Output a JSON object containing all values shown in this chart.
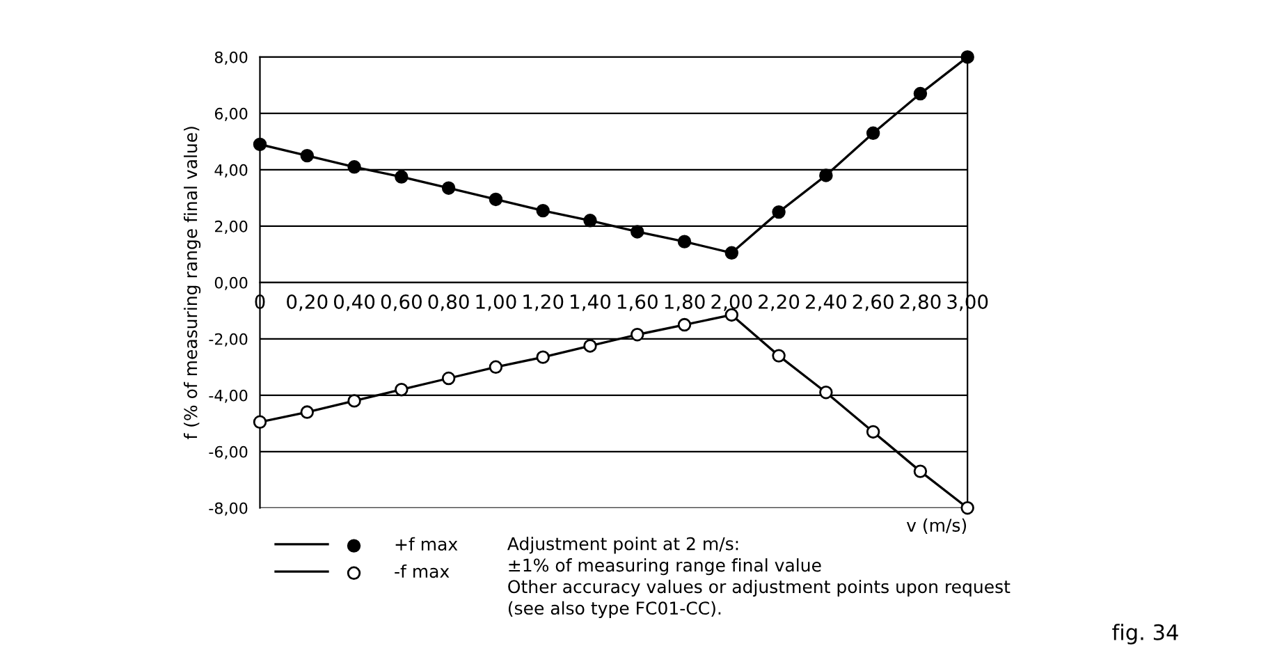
{
  "chart_data": {
    "type": "line",
    "xlabel": "v (m/s)",
    "ylabel": "f (% of measuring range final value)",
    "x": [
      0,
      0.2,
      0.4,
      0.6,
      0.8,
      1.0,
      1.2,
      1.4,
      1.6,
      1.8,
      2.0,
      2.2,
      2.4,
      2.6,
      2.8,
      3.0
    ],
    "series": [
      {
        "name": "+f max",
        "color": "#000000",
        "colors": [
          "#000000",
          "#000000",
          "#000000",
          "#000000",
          "#000000",
          "#000000",
          "#000000",
          "#000000",
          "#000000",
          "#000000",
          "#000000",
          "#000000",
          "#000000",
          "#000000",
          "#000000",
          "#000000"
        ],
        "values": [
          4.9,
          4.5,
          4.1,
          3.75,
          3.35,
          2.95,
          2.55,
          2.2,
          1.8,
          1.45,
          1.05,
          2.5,
          3.8,
          5.3,
          6.7,
          8.0
        ]
      },
      {
        "name": "-f max",
        "color": "#000000",
        "colors": [
          "#ffffff",
          "#ffffff",
          "#ffffff",
          "#ffffff",
          "#ffffff",
          "#ffffff",
          "#ffffff",
          "#ffffff",
          "#ffffff",
          "#ffffff",
          "#ffffff",
          "#ffffff",
          "#ffffff",
          "#ffffff",
          "#ffffff",
          "#ffffff"
        ],
        "values": [
          -4.95,
          -4.6,
          -4.2,
          -3.8,
          -3.4,
          -3.0,
          -2.65,
          -2.25,
          -1.85,
          -1.5,
          -1.15,
          -2.6,
          -3.9,
          -5.3,
          -6.7,
          -8.0
        ]
      }
    ],
    "xlim": [
      0,
      3
    ],
    "xticks": [
      {
        "value": 0,
        "label": "0"
      },
      {
        "value": 0.2,
        "label": "0,20"
      },
      {
        "value": 0.4,
        "label": "0,40"
      },
      {
        "value": 0.6,
        "label": "0,60"
      },
      {
        "value": 0.8,
        "label": "0,80"
      },
      {
        "value": 1.0,
        "label": "1,00"
      },
      {
        "value": 1.2,
        "label": "1,20"
      },
      {
        "value": 1.4,
        "label": "1,40"
      },
      {
        "value": 1.6,
        "label": "1,60"
      },
      {
        "value": 1.8,
        "label": "1,80"
      },
      {
        "value": 2.0,
        "label": "2,00"
      },
      {
        "value": 2.2,
        "label": "2,20"
      },
      {
        "value": 2.4,
        "label": "2,40"
      },
      {
        "value": 2.6,
        "label": "2,60"
      },
      {
        "value": 2.8,
        "label": "2,80"
      },
      {
        "value": 3.0,
        "label": "3,00"
      }
    ],
    "ylim": [
      -8,
      8
    ],
    "yticks": [
      {
        "value": -8,
        "label": "-8,00"
      },
      {
        "value": -6,
        "label": "-6,00"
      },
      {
        "value": -4,
        "label": "-4,00"
      },
      {
        "value": -2,
        "label": "-2,00"
      },
      {
        "value": 0,
        "label": "0,00"
      },
      {
        "value": 2,
        "label": "2,00"
      },
      {
        "value": 4,
        "label": "4,00"
      },
      {
        "value": 6,
        "label": "6,00"
      },
      {
        "value": 8,
        "label": "8,00"
      }
    ],
    "grid": "y",
    "marker": "circle",
    "line_style": "solid",
    "legend": "bottom left",
    "annotations": [
      "Adjustment point at 2 m/s:\n±1% of measuring range final value\nOther accuracy values or adjustment points upon request\n(see also type FC01-CC).",
      "fig. 34"
    ]
  }
}
